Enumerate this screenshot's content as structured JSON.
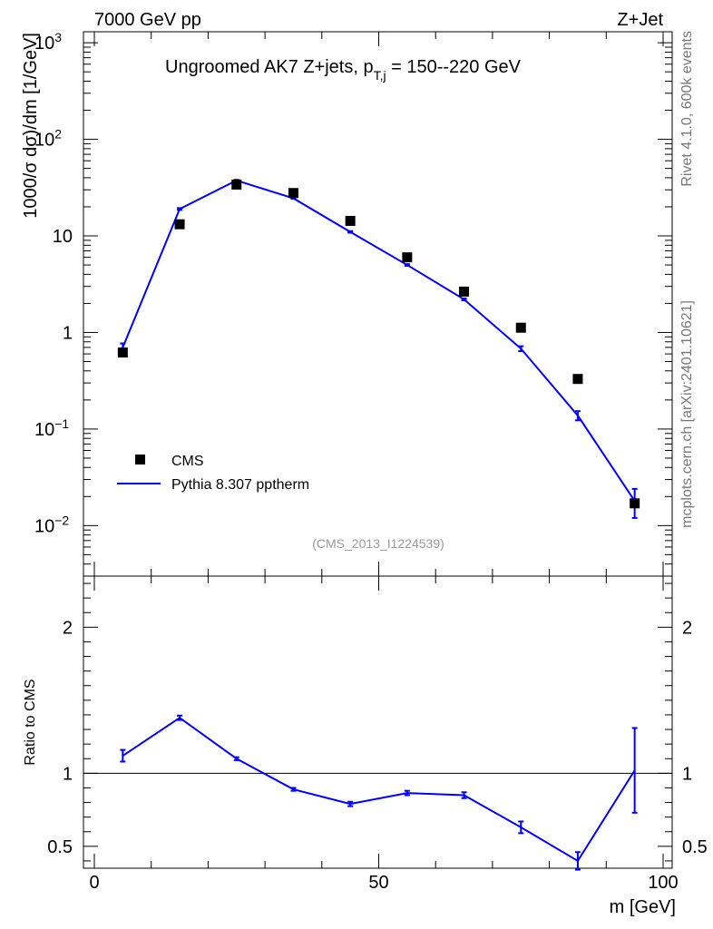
{
  "header": {
    "left_label": "7000 GeV pp",
    "right_label": "Z+Jet"
  },
  "side_labels": {
    "rivet": "Rivet 4.1.0,  600k events",
    "mcplots": "mcplots.cern.ch [arXiv:2401.10621]"
  },
  "colors": {
    "data": "#000000",
    "mc": "#0000ff",
    "watermark": "#999999"
  },
  "chart_data": [
    {
      "id": "main",
      "type": "line",
      "title_main": "Ungroomed AK7 Z+jets, p",
      "title_sub": "T,j",
      "title_rest": " = 150--220 GeV",
      "ylabel": "1000/σ  dσ)/dm [1/GeV]",
      "yscale": "log",
      "ylim": [
        0.003,
        1300
      ],
      "xlim": [
        0,
        100
      ],
      "ytick_labels": [
        {
          "value": 0.01,
          "base": "10",
          "exp": "−2"
        },
        {
          "value": 0.1,
          "base": "10",
          "exp": "−1"
        },
        {
          "value": 1,
          "base": "1",
          "exp": ""
        },
        {
          "value": 10,
          "base": "10",
          "exp": ""
        },
        {
          "value": 100,
          "base": "10",
          "exp": "2"
        },
        {
          "value": 1000,
          "base": "10",
          "exp": "3"
        }
      ],
      "watermark": "(CMS_2013_I1224539)",
      "legend": {
        "position": "lower-left",
        "entries": [
          {
            "name": "CMS",
            "style": "square-marker"
          },
          {
            "name": "Pythia 8.307 pptherm",
            "style": "line"
          }
        ]
      },
      "series": [
        {
          "name": "CMS",
          "x": [
            5,
            15,
            25,
            35,
            45,
            55,
            65,
            75,
            85,
            95
          ],
          "y": [
            0.62,
            13.2,
            34.0,
            27.8,
            14.3,
            6.0,
            2.65,
            1.12,
            0.33,
            0.017
          ]
        },
        {
          "name": "Pythia 8.307 pptherm",
          "x": [
            5,
            15,
            25,
            35,
            45,
            55,
            65,
            75,
            85,
            95
          ],
          "y": [
            0.7,
            19.0,
            37.5,
            24.5,
            11.0,
            5.0,
            2.2,
            0.68,
            0.138,
            0.018
          ],
          "yerr": [
            0.07,
            0.4,
            0.6,
            0.3,
            0.2,
            0.1,
            0.05,
            0.04,
            0.015,
            0.006
          ]
        }
      ]
    },
    {
      "id": "ratio",
      "type": "line",
      "ylabel": "Ratio to CMS",
      "xlabel": "m [GeV]",
      "ylim": [
        0.35,
        2.35
      ],
      "xlim": [
        0,
        100
      ],
      "xticks": [
        0,
        50,
        100
      ],
      "xtick_labels": [
        "0",
        "50",
        "100"
      ],
      "yticks": [
        0.5,
        1,
        2
      ],
      "ytick_labels": [
        "0.5",
        "1",
        "2"
      ],
      "reference_line": 1,
      "series": [
        {
          "name": "Pythia 8.307 pptherm",
          "x": [
            5,
            15,
            25,
            35,
            45,
            55,
            65,
            75,
            85,
            95
          ],
          "y": [
            1.12,
            1.38,
            1.1,
            0.89,
            0.79,
            0.865,
            0.85,
            0.63,
            0.4,
            1.02
          ],
          "yerr": [
            0.04,
            0.015,
            0.01,
            0.01,
            0.015,
            0.015,
            0.02,
            0.04,
            0.06,
            0.29
          ]
        }
      ]
    }
  ]
}
